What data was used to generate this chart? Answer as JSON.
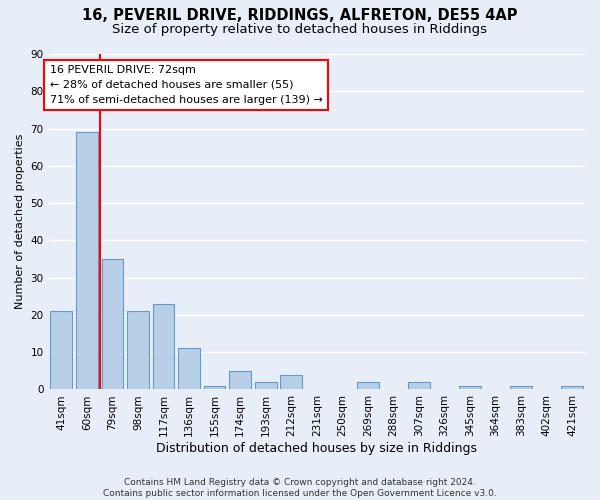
{
  "title_line1": "16, PEVERIL DRIVE, RIDDINGS, ALFRETON, DE55 4AP",
  "title_line2": "Size of property relative to detached houses in Riddings",
  "xlabel": "Distribution of detached houses by size in Riddings",
  "ylabel": "Number of detached properties",
  "categories": [
    "41sqm",
    "60sqm",
    "79sqm",
    "98sqm",
    "117sqm",
    "136sqm",
    "155sqm",
    "174sqm",
    "193sqm",
    "212sqm",
    "231sqm",
    "250sqm",
    "269sqm",
    "288sqm",
    "307sqm",
    "326sqm",
    "345sqm",
    "364sqm",
    "383sqm",
    "402sqm",
    "421sqm"
  ],
  "values": [
    21,
    69,
    35,
    21,
    23,
    11,
    1,
    5,
    2,
    4,
    0,
    0,
    2,
    0,
    2,
    0,
    1,
    0,
    1,
    0,
    1
  ],
  "bar_color": "#b8cfe8",
  "bar_edge_color": "#6699cc",
  "redline_x": 1.5,
  "annotation_text": "16 PEVERIL DRIVE: 72sqm\n← 28% of detached houses are smaller (55)\n71% of semi-detached houses are larger (139) →",
  "annotation_box_color": "white",
  "annotation_box_edge": "red",
  "redline_color": "red",
  "ylim": [
    0,
    90
  ],
  "yticks": [
    0,
    10,
    20,
    30,
    40,
    50,
    60,
    70,
    80,
    90
  ],
  "footnote": "Contains HM Land Registry data © Crown copyright and database right 2024.\nContains public sector information licensed under the Open Government Licence v3.0.",
  "background_color": "#e8eef8",
  "grid_color": "#ffffff",
  "title1_fontsize": 10.5,
  "title2_fontsize": 9.5,
  "xlabel_fontsize": 9,
  "ylabel_fontsize": 8,
  "tick_fontsize": 7.5,
  "annot_fontsize": 8,
  "footnote_fontsize": 6.5
}
